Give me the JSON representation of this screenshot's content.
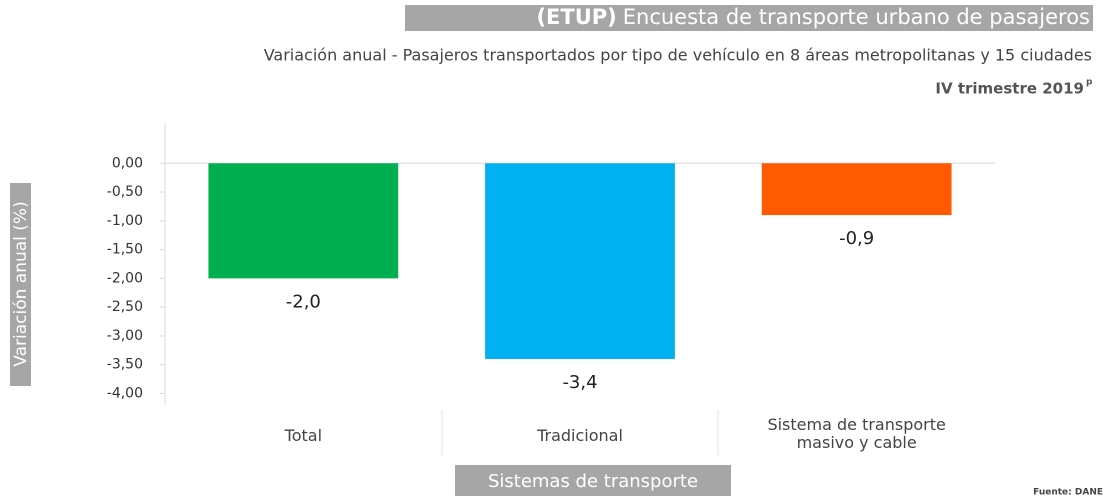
{
  "chart_data": {
    "type": "bar",
    "title_code": "(ETUP)",
    "title": "Encuesta de transporte urbano de pasajeros",
    "subtitle": "Variación anual - Pasajeros transportados por tipo de vehículo en 8 áreas metropolitanas y 15 ciudades",
    "period": "IV trimestre 2019",
    "period_note": "p",
    "y_label": "Variación anual (%)",
    "x_label": "Sistemas de transporte",
    "source": "Fuente: DANE",
    "categories": [
      "Total",
      "Tradicional",
      "Sistema de transporte masivo y cable"
    ],
    "values": [
      -2.0,
      -3.4,
      -0.9
    ],
    "value_labels": [
      "-2,0",
      "-3,4",
      "-0,9"
    ],
    "colors": [
      "#00b050",
      "#00b0f0",
      "#ff5a00"
    ],
    "ylim": [
      -4.2,
      0.7
    ],
    "yticks": [
      {
        "value": 0,
        "label": "0,00"
      },
      {
        "value": -0.5,
        "label": "-0,50"
      },
      {
        "value": -1,
        "label": "-1,00"
      },
      {
        "value": -1.5,
        "label": "-1,50"
      },
      {
        "value": -2,
        "label": "-2,00"
      },
      {
        "value": -2.5,
        "label": "-2,50"
      },
      {
        "value": -3,
        "label": "-3,00"
      },
      {
        "value": -3.5,
        "label": "-3,50"
      },
      {
        "value": -4,
        "label": "-4,00"
      }
    ],
    "grid": false
  }
}
